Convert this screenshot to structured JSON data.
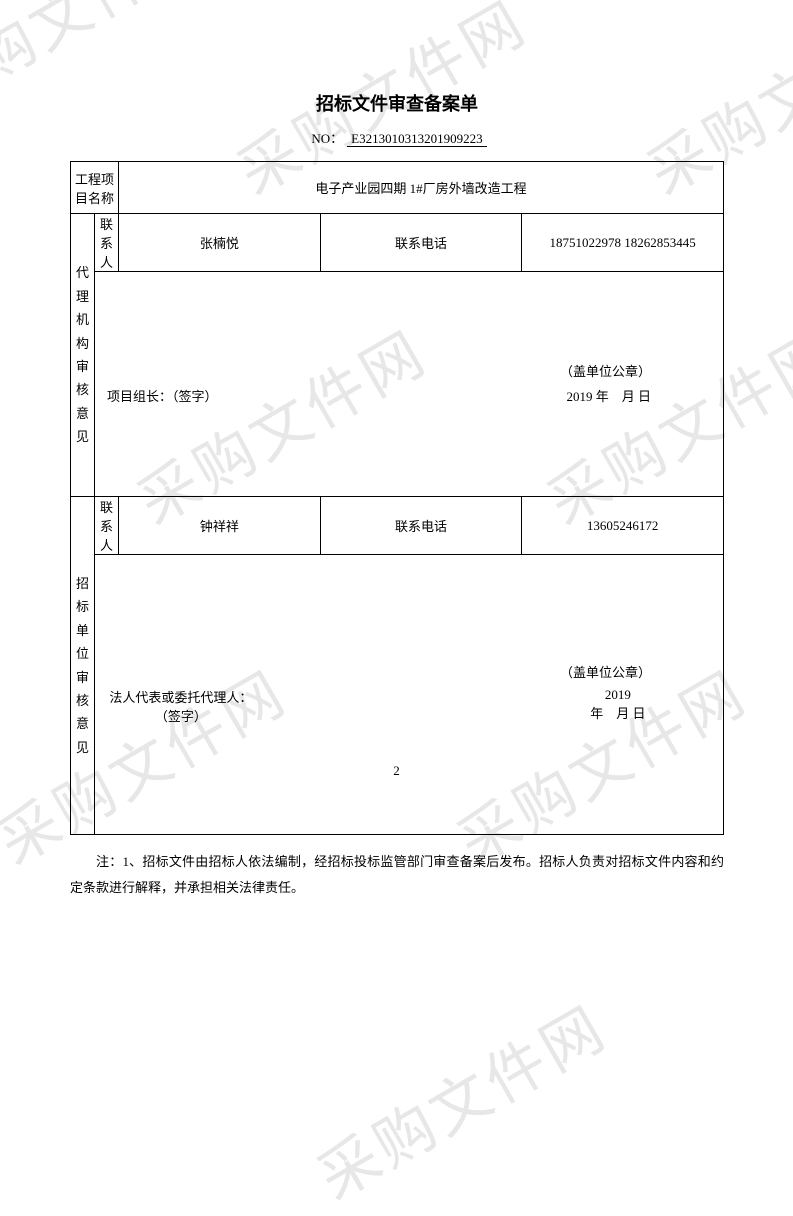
{
  "title": "招标文件审查备案单",
  "doc_no_prefix": "NO：",
  "doc_no": "E3213010313201909223",
  "watermark_text": "采购文件网",
  "labels": {
    "project_name": "工程项目名称",
    "contact_person": "联系人",
    "contact_phone": "联系电话",
    "agency_opinion": "代理机构审核意见",
    "bidder_opinion": "招标单位审核意见",
    "project_leader": "项目组长：（签字）",
    "legal_rep": "法人代表或委托代理人：（签字）",
    "seal": "（盖单位公章）",
    "date_year": "2019 年",
    "date_month_day": "月    日"
  },
  "project": {
    "name": "电子产业园四期 1#厂房外墙改造工程"
  },
  "agency": {
    "contact_name": "张楠悦",
    "contact_phone": "18751022978  18262853445"
  },
  "bidder": {
    "contact_name": "钟祥祥",
    "contact_phone": "13605246172"
  },
  "note": "注：1、招标文件由招标人依法编制，经招标投标监管部门审查备案后发布。招标人负责对招标文件内容和约定条款进行解释，并承担相关法律责任。",
  "page_number": "2"
}
